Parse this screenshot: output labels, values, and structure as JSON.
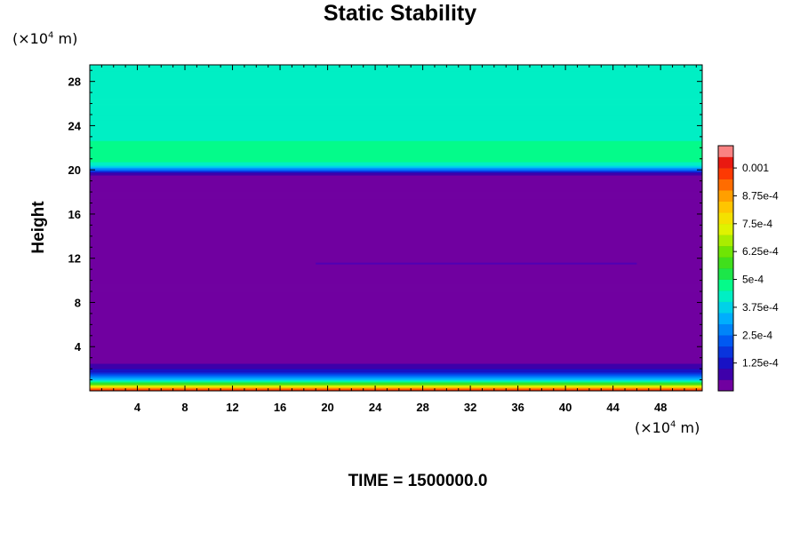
{
  "chart_data": {
    "type": "heatmap",
    "title": "Static Stability",
    "ylabel": "Height",
    "xlabel": "",
    "x_unit": "(×10⁴ m)",
    "y_unit": "(×10⁴ m)",
    "footer": "TIME = 1500000.0",
    "xlim": [
      0,
      51.5
    ],
    "ylim": [
      0,
      29.5
    ],
    "x_ticks": [
      4,
      8,
      12,
      16,
      20,
      24,
      28,
      32,
      36,
      40,
      44,
      48
    ],
    "y_ticks": [
      4,
      8,
      12,
      16,
      20,
      24,
      28
    ],
    "colorbar": {
      "min": 0,
      "max": 0.0011,
      "levels": 22,
      "tick_values": [
        0.000125,
        0.00025,
        0.000375,
        0.0005,
        0.000625,
        0.00075,
        0.000875,
        0.001
      ],
      "tick_labels": [
        "1.25e-4",
        "2.5e-4",
        "3.75e-4",
        "5e-4",
        "6.25e-4",
        "7.5e-4",
        "8.75e-4",
        "0.001"
      ]
    },
    "vertical_profile": [
      {
        "height": 0.0,
        "value": 0.00108
      },
      {
        "height": 0.3,
        "value": 0.00085
      },
      {
        "height": 0.6,
        "value": 0.0006
      },
      {
        "height": 0.9,
        "value": 0.00042
      },
      {
        "height": 1.2,
        "value": 0.0003
      },
      {
        "height": 1.5,
        "value": 0.0002
      },
      {
        "height": 1.8,
        "value": 0.00013
      },
      {
        "height": 2.1,
        "value": 8e-05
      },
      {
        "height": 2.5,
        "value": 5e-05
      },
      {
        "height": 2.9,
        "value": 2e-05
      },
      {
        "height": 19.3,
        "value": 2e-05
      },
      {
        "height": 19.7,
        "value": 8e-05
      },
      {
        "height": 20.0,
        "value": 0.00025
      },
      {
        "height": 20.4,
        "value": 0.0004
      },
      {
        "height": 21.0,
        "value": 0.0005
      },
      {
        "height": 22.0,
        "value": 0.00047
      },
      {
        "height": 23.0,
        "value": 0.00044
      },
      {
        "height": 29.5,
        "value": 0.00044
      }
    ]
  }
}
